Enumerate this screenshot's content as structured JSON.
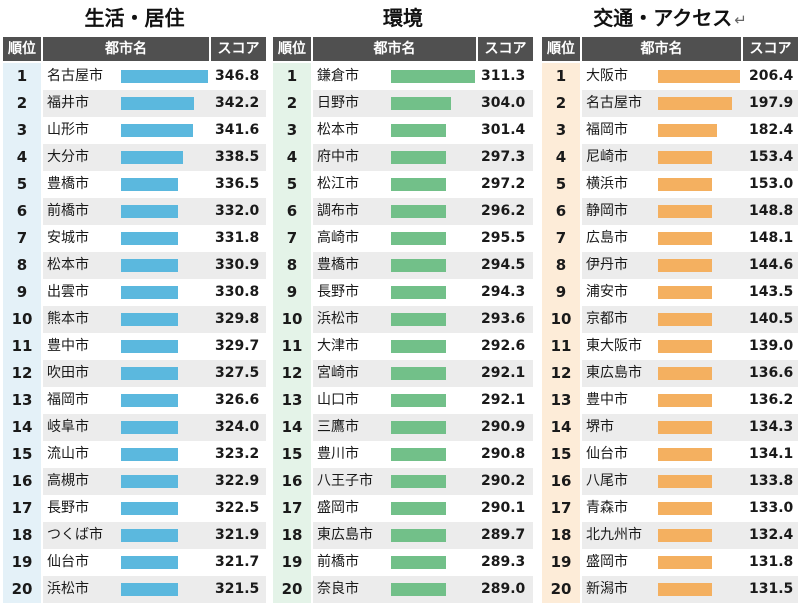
{
  "headers": {
    "rank": "順位",
    "city": "都市名",
    "score": "スコア"
  },
  "return_mark": "↵",
  "colors": {
    "bar_living": "#5bb8de",
    "bar_environment": "#72c089",
    "bar_access": "#f4b060",
    "rank_bg_living": "#e4f1f8",
    "rank_bg_environment": "#e4f3e8",
    "rank_bg_access": "#fdecd8",
    "header_bg": "#505050"
  },
  "chart_data": [
    {
      "type": "bar",
      "title": "生活・居住",
      "categories": [
        "名古屋市",
        "福井市",
        "山形市",
        "大分市",
        "豊橋市",
        "前橋市",
        "安城市",
        "松本市",
        "出雲市",
        "熊本市",
        "豊中市",
        "吹田市",
        "福岡市",
        "岐阜市",
        "流山市",
        "高槻市",
        "長野市",
        "つくば市",
        "仙台市",
        "浜松市"
      ],
      "ranks": [
        "1",
        "2",
        "3",
        "4",
        "5",
        "6",
        "7",
        "8",
        "9",
        "10",
        "11",
        "12",
        "13",
        "14",
        "15",
        "16",
        "17",
        "18",
        "19",
        "20"
      ],
      "values": [
        346.8,
        342.2,
        341.6,
        338.5,
        336.5,
        332.0,
        331.8,
        330.9,
        330.8,
        329.8,
        329.7,
        327.5,
        326.6,
        324.0,
        323.2,
        322.9,
        322.5,
        321.9,
        321.7,
        321.5
      ],
      "labels": [
        "346.8",
        "342.2",
        "341.6",
        "338.5",
        "336.5",
        "332.0",
        "331.8",
        "330.9",
        "330.8",
        "329.8",
        "329.7",
        "327.5",
        "326.6",
        "324.0",
        "323.2",
        "322.9",
        "322.5",
        "321.9",
        "321.7",
        "321.5"
      ]
    },
    {
      "type": "bar",
      "title": "環境",
      "categories": [
        "鎌倉市",
        "日野市",
        "松本市",
        "府中市",
        "松江市",
        "調布市",
        "高崎市",
        "豊橋市",
        "長野市",
        "浜松市",
        "大津市",
        "宮崎市",
        "山口市",
        "三鷹市",
        "豊川市",
        "八王子市",
        "盛岡市",
        "東広島市",
        "前橋市",
        "奈良市"
      ],
      "ranks": [
        "1",
        "2",
        "3",
        "4",
        "5",
        "6",
        "7",
        "8",
        "9",
        "10",
        "11",
        "12",
        "13",
        "14",
        "15",
        "16",
        "17",
        "18",
        "19",
        "20"
      ],
      "values": [
        311.3,
        304.0,
        301.4,
        297.3,
        297.2,
        296.2,
        295.5,
        294.5,
        294.3,
        293.6,
        292.6,
        292.1,
        292.1,
        290.9,
        290.8,
        290.2,
        290.1,
        289.7,
        289.3,
        289.0
      ],
      "labels": [
        "311.3",
        "304.0",
        "301.4",
        "297.3",
        "297.2",
        "296.2",
        "295.5",
        "294.5",
        "294.3",
        "293.6",
        "292.6",
        "292.1",
        "292.1",
        "290.9",
        "290.8",
        "290.2",
        "290.1",
        "289.7",
        "289.3",
        "289.0"
      ]
    },
    {
      "type": "bar",
      "title": "交通・アクセス",
      "categories": [
        "大阪市",
        "名古屋市",
        "福岡市",
        "尼崎市",
        "横浜市",
        "静岡市",
        "広島市",
        "伊丹市",
        "浦安市",
        "京都市",
        "東大阪市",
        "東広島市",
        "豊中市",
        "堺市",
        "仙台市",
        "八尾市",
        "青森市",
        "北九州市",
        "盛岡市",
        "新潟市"
      ],
      "ranks": [
        "1",
        "2",
        "3",
        "4",
        "5",
        "6",
        "7",
        "8",
        "9",
        "10",
        "11",
        "12",
        "13",
        "14",
        "15",
        "16",
        "17",
        "18",
        "19",
        "20"
      ],
      "values": [
        206.4,
        197.9,
        182.4,
        153.4,
        153.0,
        148.8,
        148.1,
        144.6,
        143.5,
        140.5,
        139.0,
        136.6,
        136.2,
        134.3,
        134.1,
        133.8,
        133.0,
        132.4,
        131.8,
        131.5
      ],
      "labels": [
        "206.4",
        "197.9",
        "182.4",
        "153.4",
        "153.0",
        "148.8",
        "148.1",
        "144.6",
        "143.5",
        "140.5",
        "139.0",
        "136.6",
        "136.2",
        "134.3",
        "134.1",
        "133.8",
        "133.0",
        "132.4",
        "131.8",
        "131.5"
      ]
    }
  ]
}
